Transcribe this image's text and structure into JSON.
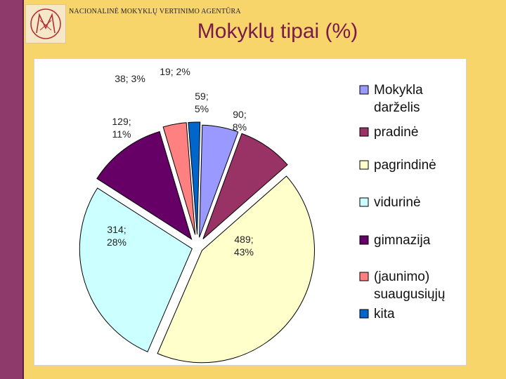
{
  "header": {
    "agency_name": "NACIONALINĖ MOKYKLŲ VERTINIMO AGENTŪRA",
    "title": "Mokyklų tipai (%)"
  },
  "colors": {
    "background": "#f7d56b",
    "accent_bar": "#8e3a6a",
    "title": "#7a1a4a"
  },
  "chart_data": {
    "type": "pie",
    "title": "Mokyklų tipai (%)",
    "legend_position": "right",
    "slices": [
      {
        "label": [
          "Mokykla",
          "darželis"
        ],
        "value": 59,
        "percent": 5,
        "color": "#9999ff",
        "data_label": [
          "59;",
          "5%"
        ]
      },
      {
        "label": [
          "pradinė"
        ],
        "value": 90,
        "percent": 8,
        "color": "#993366",
        "data_label": [
          "90;",
          "8%"
        ]
      },
      {
        "label": [
          "pagrindinė"
        ],
        "value": 489,
        "percent": 43,
        "color": "#ffffcc",
        "data_label": [
          "489;",
          "43%"
        ]
      },
      {
        "label": [
          "vidurinė"
        ],
        "value": 314,
        "percent": 28,
        "color": "#ccffff",
        "data_label": [
          "314;",
          "28%"
        ]
      },
      {
        "label": [
          "gimnazija"
        ],
        "value": 129,
        "percent": 11,
        "color": "#660066",
        "data_label": [
          "129;",
          "11%"
        ]
      },
      {
        "label": [
          "(jaunimo)",
          "suaugusiųjų"
        ],
        "value": 38,
        "percent": 3,
        "color": "#ff8080",
        "data_label": [
          "38; 3%"
        ]
      },
      {
        "label": [
          "kita"
        ],
        "value": 19,
        "percent": 2,
        "color": "#0066cc",
        "data_label": [
          "19; 2%"
        ]
      }
    ]
  }
}
